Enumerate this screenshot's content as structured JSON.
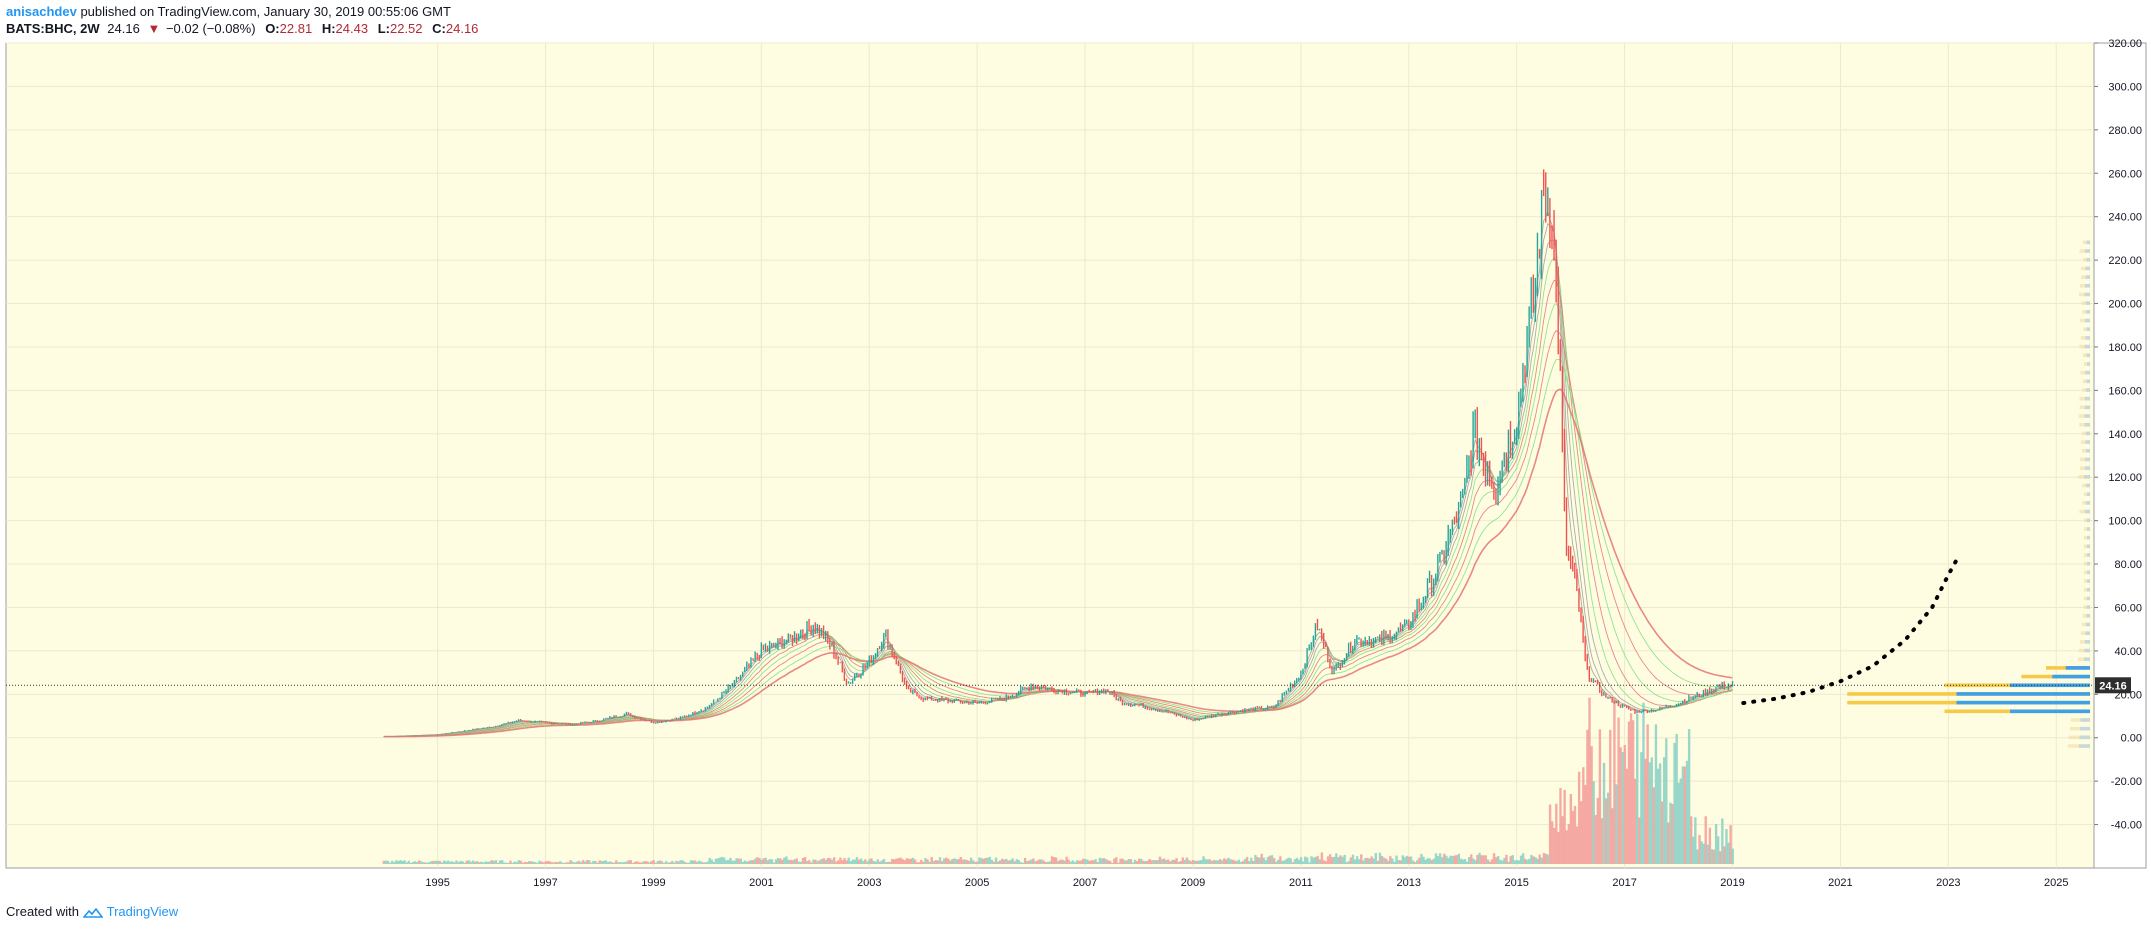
{
  "header": {
    "author": "anisachdev",
    "published": "published on TradingView.com, January 30, 2019 00:55:06 GMT",
    "symbol": "BATS:BHC, 2W",
    "last": "24.16",
    "change": "−0.02 (−0.08%)",
    "o_label": "O:",
    "o_val": "22.81",
    "h_label": "H:",
    "h_val": "24.43",
    "l_label": "L:",
    "l_val": "22.52",
    "c_label": "C:",
    "c_val": "24.16"
  },
  "footer": {
    "created": "Created with",
    "brand": "TradingView"
  },
  "colors": {
    "background": "#fffde1",
    "up": "#26a69a",
    "down": "#ef5350",
    "ribbon_green": "#7ee07e",
    "ribbon_red": "#e57373",
    "profile_yellow": "#f7c948",
    "profile_blue": "#3ea0e6"
  },
  "chart_data": {
    "type": "line",
    "ylim": [
      -60,
      320
    ],
    "y_ticks": [
      "320.00",
      "300.00",
      "280.00",
      "260.00",
      "240.00",
      "220.00",
      "200.00",
      "180.00",
      "160.00",
      "140.00",
      "120.00",
      "100.00",
      "80.00",
      "60.00",
      "40.00",
      "20.00",
      "0.00",
      "-20.00",
      "-40.00"
    ],
    "x_ticks": [
      "1995",
      "1997",
      "1999",
      "2001",
      "2003",
      "2005",
      "2007",
      "2009",
      "2011",
      "2013",
      "2015",
      "2017",
      "2019",
      "2021",
      "2023",
      "2025"
    ],
    "xlim": [
      1987.0,
      2025.7
    ],
    "last_price_label": "24.16",
    "last_price": 24.16,
    "series": [
      {
        "price": [
          [
            1994.0,
            0.5
          ],
          [
            1995.0,
            1.5
          ],
          [
            1996.0,
            5
          ],
          [
            1996.5,
            8
          ],
          [
            1997.0,
            7
          ],
          [
            1997.5,
            6
          ],
          [
            1998.0,
            8
          ],
          [
            1998.5,
            11
          ],
          [
            1999.0,
            7
          ],
          [
            1999.5,
            9
          ],
          [
            2000.0,
            14
          ],
          [
            2000.5,
            25
          ],
          [
            2001.0,
            40
          ],
          [
            2001.5,
            45
          ],
          [
            2002.0,
            52
          ],
          [
            2002.3,
            42
          ],
          [
            2002.6,
            25
          ],
          [
            2003.0,
            35
          ],
          [
            2003.3,
            48
          ],
          [
            2003.7,
            22
          ],
          [
            2004.0,
            18
          ],
          [
            2004.5,
            17
          ],
          [
            2005.0,
            16
          ],
          [
            2005.5,
            18
          ],
          [
            2006.0,
            24
          ],
          [
            2006.5,
            22
          ],
          [
            2007.0,
            20
          ],
          [
            2007.4,
            22
          ],
          [
            2007.7,
            16
          ],
          [
            2008.0,
            15
          ],
          [
            2008.5,
            12
          ],
          [
            2009.0,
            8
          ],
          [
            2009.5,
            11
          ],
          [
            2010.0,
            13
          ],
          [
            2010.5,
            14
          ],
          [
            2011.0,
            30
          ],
          [
            2011.3,
            52
          ],
          [
            2011.6,
            30
          ],
          [
            2012.0,
            45
          ],
          [
            2012.5,
            45
          ],
          [
            2013.0,
            52
          ],
          [
            2013.5,
            75
          ],
          [
            2014.0,
            110
          ],
          [
            2014.2,
            140
          ],
          [
            2014.6,
            115
          ],
          [
            2015.0,
            150
          ],
          [
            2015.3,
            200
          ],
          [
            2015.5,
            250
          ],
          [
            2015.65,
            245
          ],
          [
            2015.8,
            170
          ],
          [
            2015.9,
            90
          ],
          [
            2016.1,
            70
          ],
          [
            2016.3,
            30
          ],
          [
            2016.6,
            20
          ],
          [
            2016.9,
            15
          ],
          [
            2017.2,
            12
          ],
          [
            2017.6,
            13
          ],
          [
            2018.0,
            16
          ],
          [
            2018.4,
            20
          ],
          [
            2018.8,
            24
          ],
          [
            2019.0,
            24.16
          ]
        ]
      }
    ],
    "projection": [
      [
        2019.2,
        16
      ],
      [
        2019.8,
        18
      ],
      [
        2020.4,
        21
      ],
      [
        2021.0,
        26
      ],
      [
        2021.6,
        33
      ],
      [
        2022.2,
        45
      ],
      [
        2022.7,
        60
      ],
      [
        2023.0,
        75
      ],
      [
        2023.2,
        84
      ]
    ]
  }
}
